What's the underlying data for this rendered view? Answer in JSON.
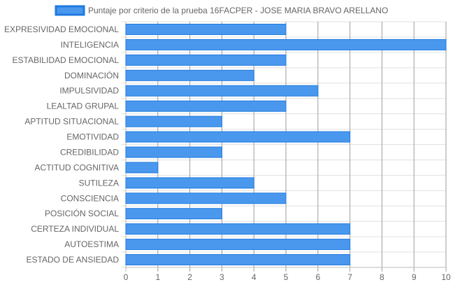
{
  "chart_data": {
    "type": "bar",
    "orientation": "horizontal",
    "categories": [
      "EXPRESIVIDAD EMOCIONAL",
      "INTELIGENCIA",
      "ESTABILIDAD EMOCIONAL",
      "DOMINACIÓN",
      "IMPULSIVIDAD",
      "LEALTAD GRUPAL",
      "APTITUD SITUACIONAL",
      "EMOTIVIDAD",
      "CREDIBILIDAD",
      "ACTITUD COGNITIVA",
      "SUTILEZA",
      "CONSCIENCIA",
      "POSICIÓN SOCIAL",
      "CERTEZA INDIVIDUAL",
      "AUTOESTIMA",
      "ESTADO DE ANSIEDAD"
    ],
    "series": [
      {
        "name": "Puntaje por criterio de la prueba 16FACPER - JOSE MARIA BRAVO ARELLANO",
        "values": [
          5,
          10,
          5,
          4,
          6,
          5,
          3,
          7,
          3,
          1,
          4,
          5,
          3,
          7,
          7,
          7
        ],
        "color": "#4a98ed",
        "border_color": "#1f7ae0"
      }
    ],
    "xlim": [
      0,
      10
    ],
    "x_ticks": [
      "0",
      "1",
      "2",
      "3",
      "4",
      "5",
      "6",
      "7",
      "8",
      "9",
      "10"
    ],
    "grid": true,
    "legend_position": "top",
    "title": "",
    "xlabel": "",
    "ylabel": ""
  }
}
